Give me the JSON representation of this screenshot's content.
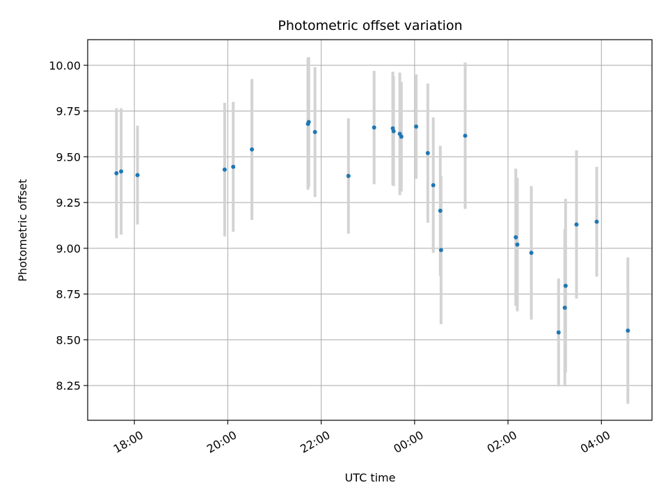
{
  "chart_data": {
    "type": "scatter",
    "title": "Photometric offset variation",
    "xlabel": "UTC time",
    "ylabel": "Photometric offset",
    "x_unit": "UTC time of night (ticks every 2 hours)",
    "xlim": [
      "17:00",
      "05:05"
    ],
    "ylim": [
      8.06,
      10.14
    ],
    "xticks": [
      "18:00",
      "20:00",
      "22:00",
      "00:00",
      "02:00",
      "04:00"
    ],
    "yticks": [
      "8.25",
      "8.50",
      "8.75",
      "9.00",
      "9.25",
      "9.50",
      "9.75",
      "10.00"
    ],
    "grid": true,
    "marker_color": "#1f77b4",
    "errorbar_color": "#d3d3d3",
    "points": [
      {
        "t": "17:37",
        "y": 9.41,
        "err": 0.355
      },
      {
        "t": "17:43",
        "y": 9.42,
        "err": 0.345
      },
      {
        "t": "18:04",
        "y": 9.4,
        "err": 0.27
      },
      {
        "t": "19:56",
        "y": 9.43,
        "err": 0.365
      },
      {
        "t": "20:07",
        "y": 9.445,
        "err": 0.355
      },
      {
        "t": "20:31",
        "y": 9.54,
        "err": 0.385
      },
      {
        "t": "21:43",
        "y": 9.68,
        "err": 0.36
      },
      {
        "t": "21:44",
        "y": 9.69,
        "err": 0.355
      },
      {
        "t": "21:52",
        "y": 9.635,
        "err": 0.355
      },
      {
        "t": "22:35",
        "y": 9.395,
        "err": 0.315
      },
      {
        "t": "23:08",
        "y": 9.66,
        "err": 0.31
      },
      {
        "t": "23:32",
        "y": 9.655,
        "err": 0.31
      },
      {
        "t": "23:33",
        "y": 9.64,
        "err": 0.3
      },
      {
        "t": "23:41",
        "y": 9.625,
        "err": 0.335
      },
      {
        "t": "23:43",
        "y": 9.61,
        "err": 0.3
      },
      {
        "t": "00:02",
        "y": 9.665,
        "err": 0.285
      },
      {
        "t": "00:17",
        "y": 9.52,
        "err": 0.38
      },
      {
        "t": "00:24",
        "y": 9.345,
        "err": 0.37
      },
      {
        "t": "00:33",
        "y": 9.205,
        "err": 0.355
      },
      {
        "t": "00:34",
        "y": 8.99,
        "err": 0.405
      },
      {
        "t": "01:05",
        "y": 9.615,
        "err": 0.4
      },
      {
        "t": "02:10",
        "y": 9.06,
        "err": 0.375
      },
      {
        "t": "02:12",
        "y": 9.02,
        "err": 0.365
      },
      {
        "t": "02:30",
        "y": 8.975,
        "err": 0.365
      },
      {
        "t": "03:05",
        "y": 8.54,
        "err": 0.295
      },
      {
        "t": "03:13",
        "y": 8.675,
        "err": 0.43
      },
      {
        "t": "03:14",
        "y": 8.795,
        "err": 0.475
      },
      {
        "t": "03:28",
        "y": 9.13,
        "err": 0.405
      },
      {
        "t": "03:54",
        "y": 9.145,
        "err": 0.3
      },
      {
        "t": "04:34",
        "y": 8.55,
        "err": 0.4
      }
    ]
  }
}
